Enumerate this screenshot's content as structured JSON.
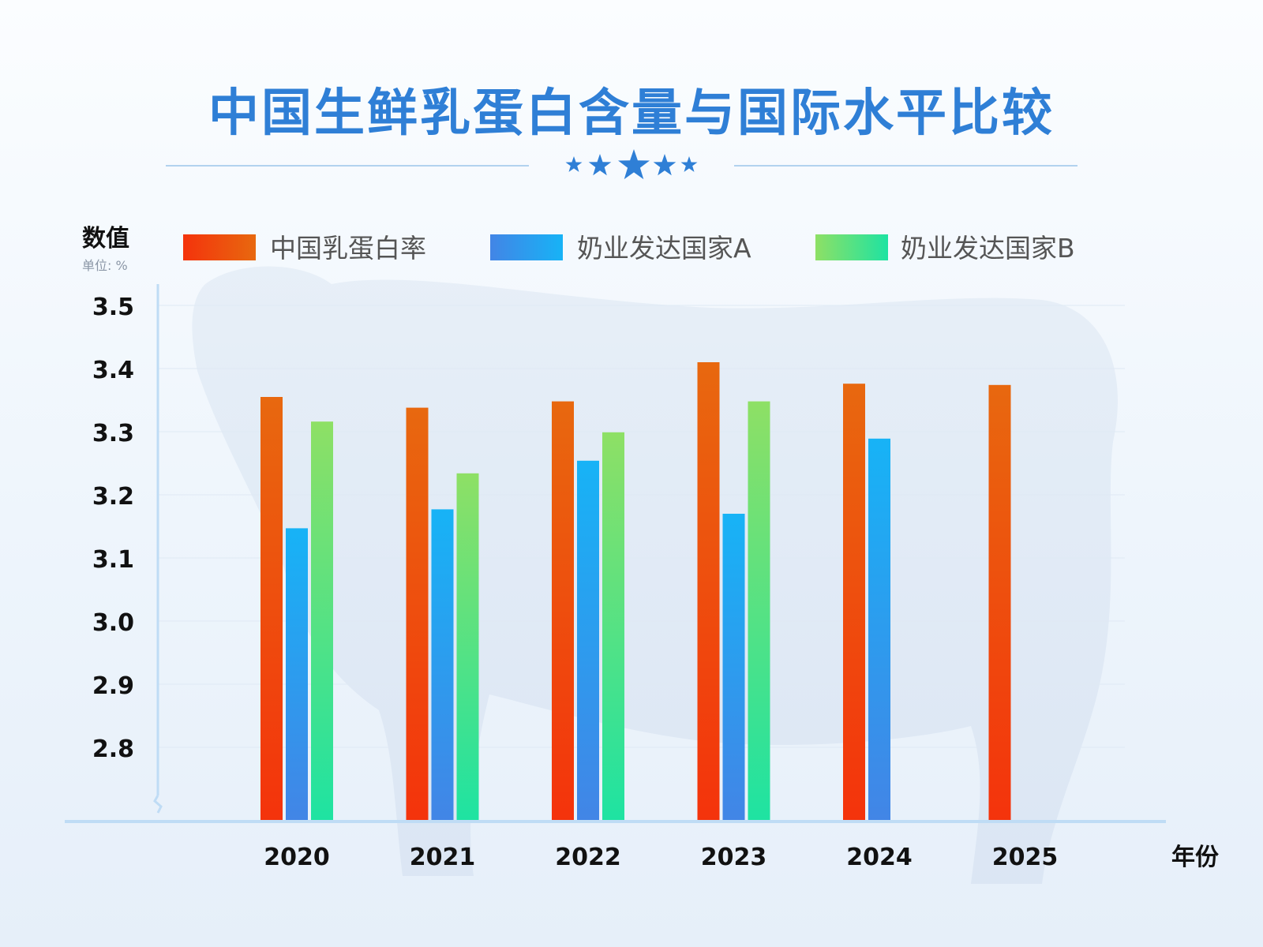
{
  "chart_data": {
    "type": "bar",
    "title": "中国生鲜乳蛋白含量与国际水平比较",
    "ylabel": "数值",
    "yunit": "单位: %",
    "xlabel": "年份",
    "ylim": [
      2.7,
      3.55
    ],
    "yticks": [
      "3.5",
      "3.4",
      "3.3",
      "3.2",
      "3.1",
      "3.0",
      "2.9",
      "2.8"
    ],
    "categories": [
      "2020",
      "2021",
      "2022",
      "2023",
      "2024",
      "2025"
    ],
    "series": [
      {
        "name": "中国乳蛋白率",
        "values": [
          3.355,
          3.338,
          3.348,
          3.41,
          3.376,
          3.374
        ]
      },
      {
        "name": "奶业发达国家A",
        "values": [
          3.147,
          3.177,
          3.254,
          3.17,
          3.289,
          null
        ]
      },
      {
        "name": "奶业发达国家B",
        "values": [
          3.316,
          3.234,
          3.299,
          3.348,
          null,
          null
        ]
      }
    ],
    "colors": {
      "series0_top": "#e8680f",
      "series0_bottom": "#f4330c",
      "series1_top": "#17b3f6",
      "series1_bottom": "#4285e6",
      "series2_top": "#8ee065",
      "series2_bottom": "#1ee3a2",
      "title": "#2f7fd6",
      "axis": "#bfdcf5"
    },
    "grid": true,
    "legend": "top"
  }
}
